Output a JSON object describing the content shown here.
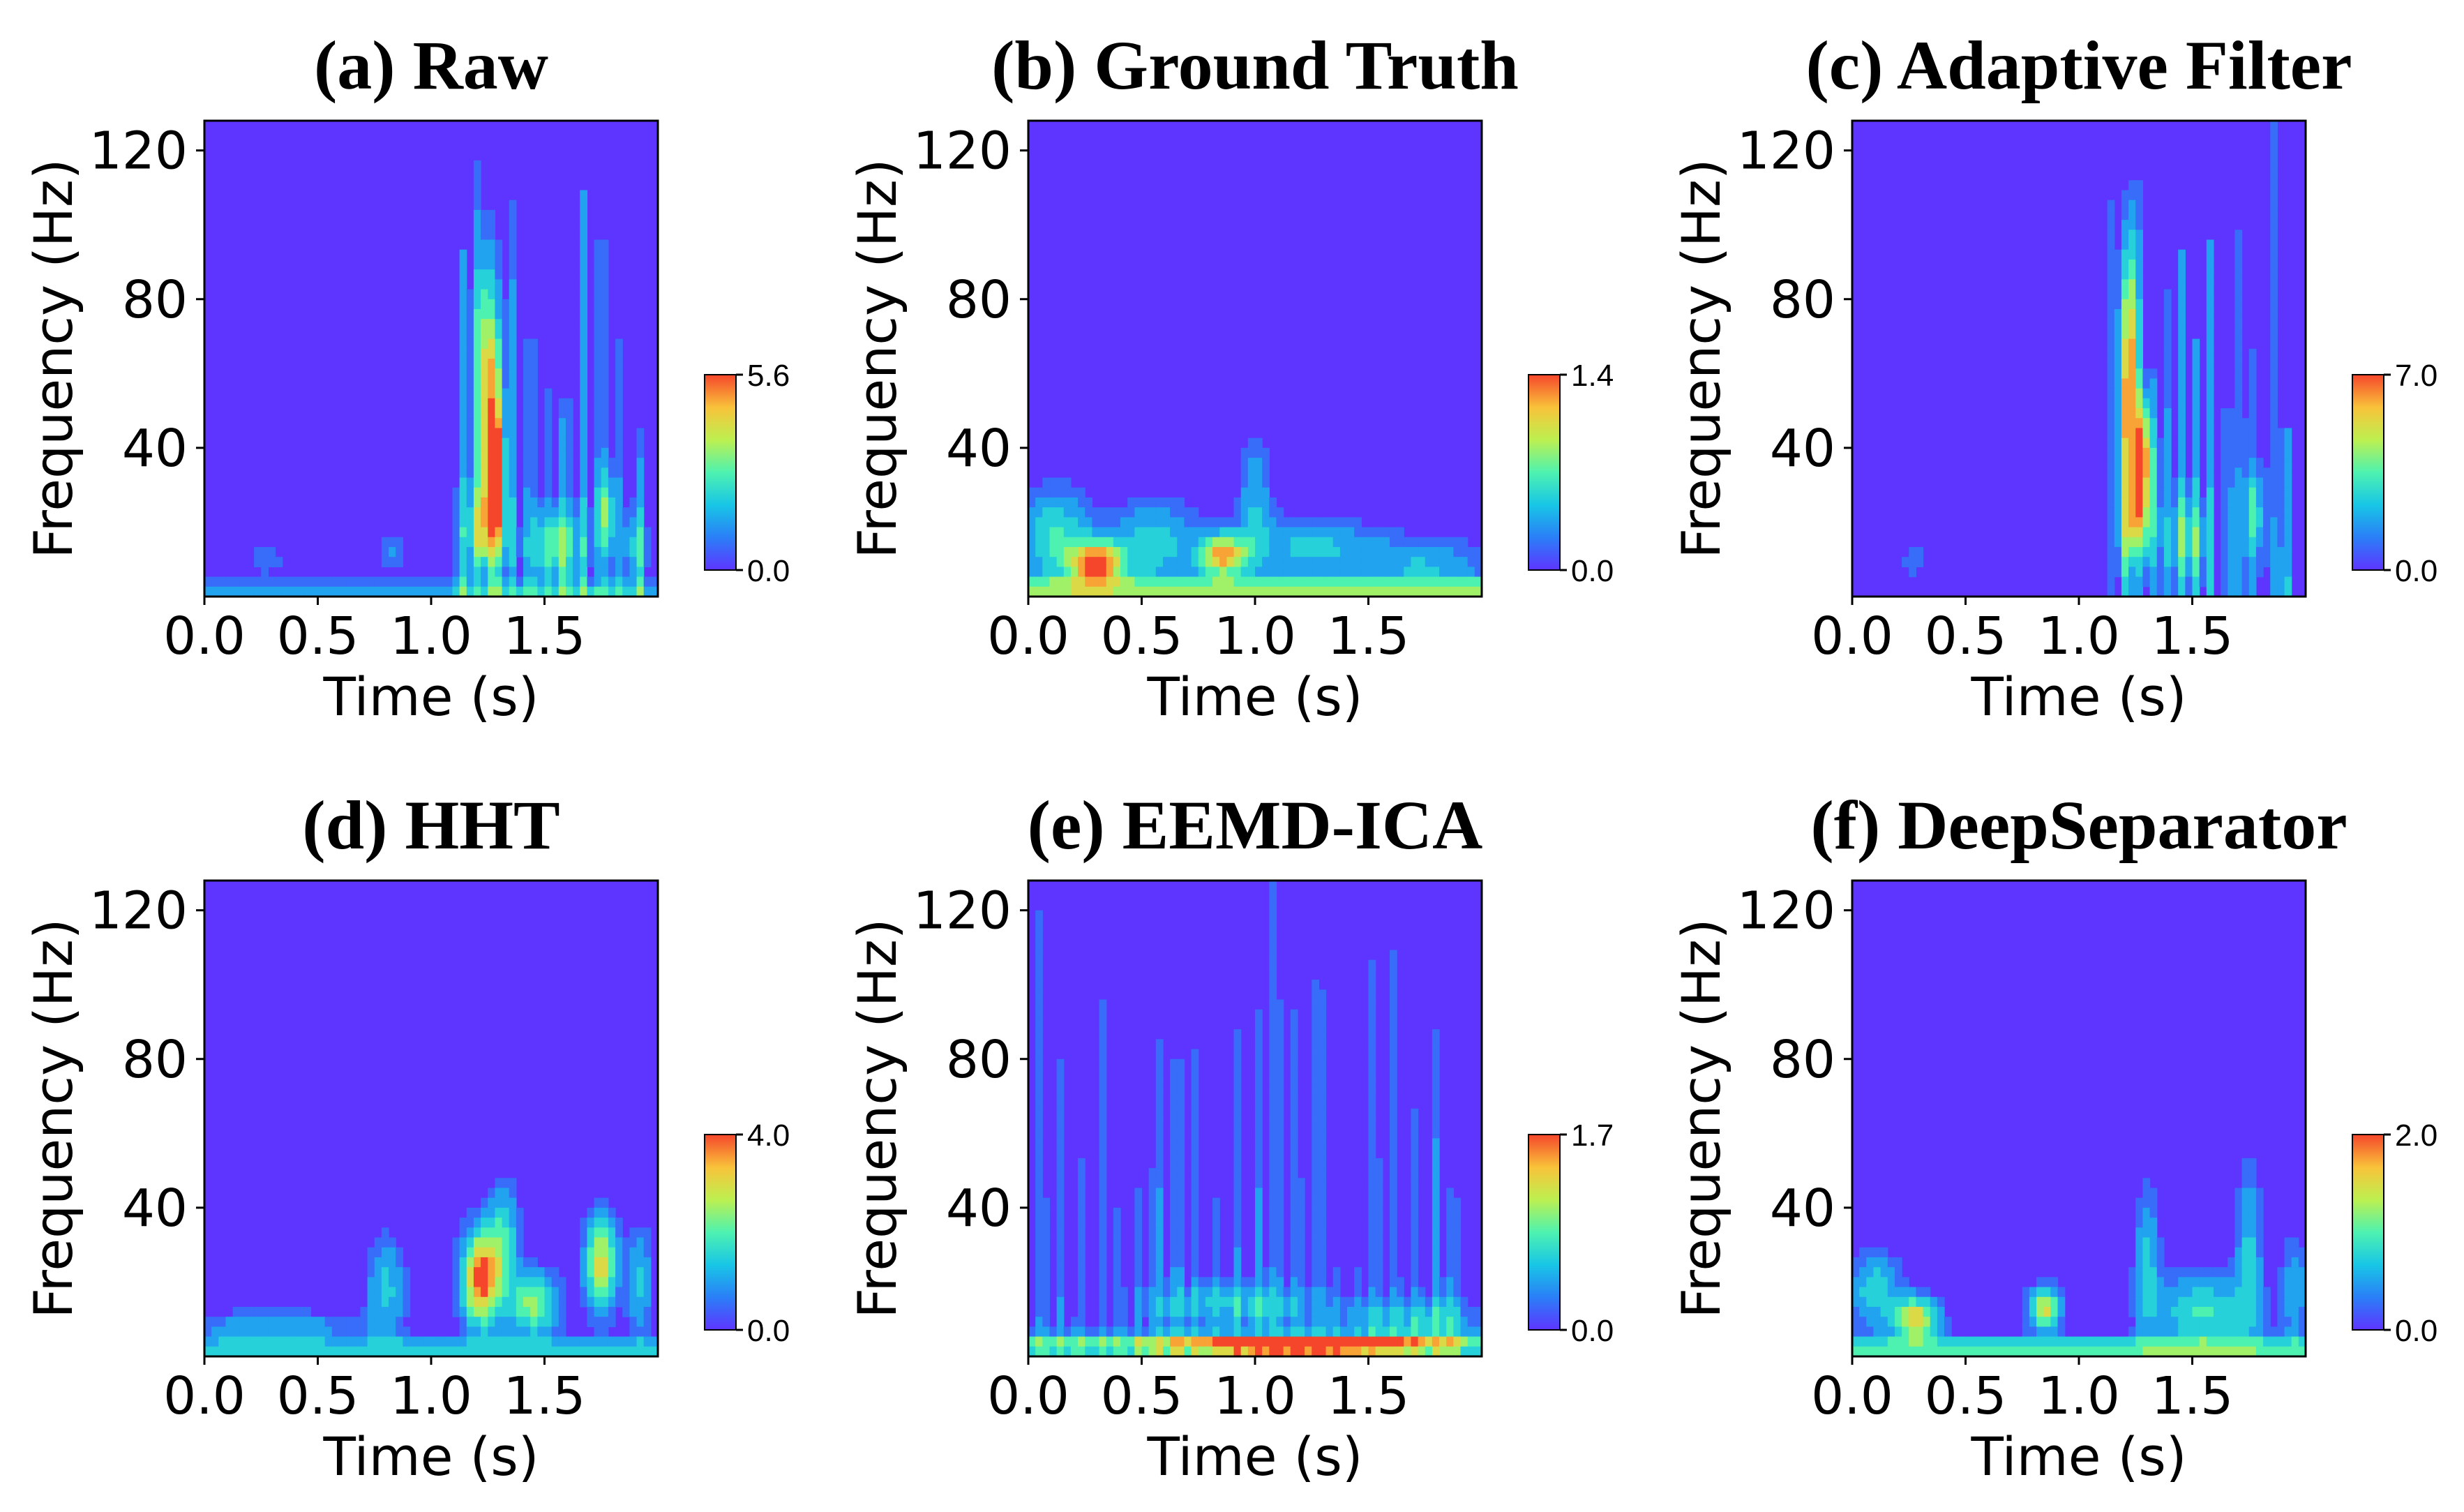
{
  "figure": {
    "rows": 2,
    "cols": 3
  },
  "colors": {
    "background": "#5e35ff",
    "colormap": [
      "#5e35ff",
      "#2a7ff7",
      "#18c6e6",
      "#4ef2b0",
      "#bdf050",
      "#f9c23a",
      "#f5462b"
    ]
  },
  "chart_data": [
    {
      "type": "heatmap",
      "title": "(a) Raw",
      "xlabel": "Time (s)",
      "ylabel": "Frequency (Hz)",
      "xlim": [
        0,
        2.0
      ],
      "ylim": [
        0,
        128
      ],
      "xticks": [
        0.0,
        0.5,
        1.0,
        1.5
      ],
      "xtick_labels": [
        "0.0",
        "0.5",
        "1.0",
        "1.5"
      ],
      "yticks": [
        40,
        80,
        120
      ],
      "ytick_labels": [
        "40",
        "80",
        "120"
      ],
      "colorbar": {
        "min": 0.0,
        "max": 5.6,
        "min_label": "0.0",
        "max_label": "5.6"
      },
      "features": [
        {
          "kind": "streaks",
          "x_from": 1.12,
          "x_to": 1.97,
          "count": 11,
          "y_top": 128,
          "level": 0.28
        },
        {
          "kind": "blob",
          "t": 1.25,
          "f": 60,
          "st": 0.04,
          "sf": 22,
          "level": 0.75
        },
        {
          "kind": "blob",
          "t": 1.28,
          "f": 34,
          "st": 0.03,
          "sf": 10,
          "level": 1.0
        },
        {
          "kind": "blob",
          "t": 1.24,
          "f": 18,
          "st": 0.06,
          "sf": 8,
          "level": 0.6
        },
        {
          "kind": "blob",
          "t": 1.55,
          "f": 14,
          "st": 0.08,
          "sf": 6,
          "level": 0.45
        },
        {
          "kind": "blob",
          "t": 1.77,
          "f": 22,
          "st": 0.03,
          "sf": 8,
          "level": 0.45
        },
        {
          "kind": "blob",
          "t": 1.9,
          "f": 14,
          "st": 0.04,
          "sf": 7,
          "level": 0.3
        },
        {
          "kind": "blob",
          "t": 0.27,
          "f": 10,
          "st": 0.06,
          "sf": 3,
          "level": 0.18
        },
        {
          "kind": "blob",
          "t": 0.83,
          "f": 12,
          "st": 0.04,
          "sf": 4,
          "level": 0.2
        },
        {
          "kind": "band",
          "f": 1,
          "level": 0.28
        }
      ]
    },
    {
      "type": "heatmap",
      "title": "(b) Ground Truth",
      "xlabel": "Time (s)",
      "ylabel": "Frequency (Hz)",
      "xlim": [
        0,
        2.0
      ],
      "ylim": [
        0,
        128
      ],
      "xticks": [
        0.0,
        0.5,
        1.0,
        1.5
      ],
      "xtick_labels": [
        "0.0",
        "0.5",
        "1.0",
        "1.5"
      ],
      "yticks": [
        40,
        80,
        120
      ],
      "ytick_labels": [
        "40",
        "80",
        "120"
      ],
      "colorbar": {
        "min": 0.0,
        "max": 1.4,
        "min_label": "0.0",
        "max_label": "1.4"
      },
      "features": [
        {
          "kind": "blob",
          "t": 0.3,
          "f": 9,
          "st": 0.08,
          "sf": 4,
          "level": 1.0
        },
        {
          "kind": "blob",
          "t": 0.86,
          "f": 11,
          "st": 0.07,
          "sf": 4,
          "level": 0.85
        },
        {
          "kind": "blob",
          "t": 0.12,
          "f": 16,
          "st": 0.1,
          "sf": 9,
          "level": 0.45
        },
        {
          "kind": "blob",
          "t": 0.55,
          "f": 14,
          "st": 0.15,
          "sf": 8,
          "level": 0.38
        },
        {
          "kind": "blob",
          "t": 1.25,
          "f": 13,
          "st": 0.2,
          "sf": 6,
          "level": 0.35
        },
        {
          "kind": "blob",
          "t": 1.75,
          "f": 9,
          "st": 0.18,
          "sf": 5,
          "level": 0.3
        },
        {
          "kind": "blob",
          "t": 1.0,
          "f": 25,
          "st": 0.05,
          "sf": 12,
          "level": 0.3
        },
        {
          "kind": "band",
          "f": 2,
          "level": 0.55
        }
      ]
    },
    {
      "type": "heatmap",
      "title": "(c) Adaptive Filter",
      "xlabel": "Time (s)",
      "ylabel": "Frequency (Hz)",
      "xlim": [
        0,
        2.0
      ],
      "ylim": [
        0,
        128
      ],
      "xticks": [
        0.0,
        0.5,
        1.0,
        1.5
      ],
      "xtick_labels": [
        "0.0",
        "0.5",
        "1.0",
        "1.5"
      ],
      "yticks": [
        40,
        80,
        120
      ],
      "ytick_labels": [
        "40",
        "80",
        "120"
      ],
      "colorbar": {
        "min": 0.0,
        "max": 7.0,
        "min_label": "0.0",
        "max_label": "7.0"
      },
      "features": [
        {
          "kind": "streaks",
          "x_from": 1.12,
          "x_to": 1.97,
          "count": 13,
          "y_top": 128,
          "level": 0.3
        },
        {
          "kind": "blob",
          "t": 1.22,
          "f": 62,
          "st": 0.03,
          "sf": 24,
          "level": 0.85
        },
        {
          "kind": "blob",
          "t": 1.28,
          "f": 38,
          "st": 0.03,
          "sf": 10,
          "level": 0.85
        },
        {
          "kind": "blob",
          "t": 1.26,
          "f": 20,
          "st": 0.05,
          "sf": 8,
          "level": 0.55
        },
        {
          "kind": "blob",
          "t": 1.48,
          "f": 16,
          "st": 0.06,
          "sf": 7,
          "level": 0.35
        },
        {
          "kind": "blob",
          "t": 1.77,
          "f": 22,
          "st": 0.03,
          "sf": 8,
          "level": 0.4
        },
        {
          "kind": "blob",
          "t": 0.28,
          "f": 10,
          "st": 0.04,
          "sf": 3,
          "level": 0.2
        }
      ]
    },
    {
      "type": "heatmap",
      "title": "(d) HHT",
      "xlabel": "Time (s)",
      "ylabel": "Frequency (Hz)",
      "xlim": [
        0,
        2.0
      ],
      "ylim": [
        0,
        128
      ],
      "xticks": [
        0.0,
        0.5,
        1.0,
        1.5
      ],
      "xtick_labels": [
        "0.0",
        "0.5",
        "1.0",
        "1.5"
      ],
      "yticks": [
        40,
        80,
        120
      ],
      "ytick_labels": [
        "40",
        "80",
        "120"
      ],
      "colorbar": {
        "min": 0.0,
        "max": 4.0,
        "min_label": "0.0",
        "max_label": "4.0"
      },
      "features": [
        {
          "kind": "blob",
          "t": 1.22,
          "f": 21,
          "st": 0.06,
          "sf": 9,
          "level": 1.0
        },
        {
          "kind": "blob",
          "t": 1.75,
          "f": 25,
          "st": 0.05,
          "sf": 9,
          "level": 0.75
        },
        {
          "kind": "blob",
          "t": 1.45,
          "f": 14,
          "st": 0.08,
          "sf": 6,
          "level": 0.6
        },
        {
          "kind": "blob",
          "t": 1.32,
          "f": 32,
          "st": 0.05,
          "sf": 10,
          "level": 0.4
        },
        {
          "kind": "blob",
          "t": 0.8,
          "f": 18,
          "st": 0.06,
          "sf": 10,
          "level": 0.35
        },
        {
          "kind": "blob",
          "t": 1.92,
          "f": 20,
          "st": 0.04,
          "sf": 10,
          "level": 0.35
        },
        {
          "kind": "blob",
          "t": 0.3,
          "f": 8,
          "st": 0.25,
          "sf": 3,
          "level": 0.3
        },
        {
          "kind": "band",
          "f": 2,
          "level": 0.35
        }
      ]
    },
    {
      "type": "heatmap",
      "title": "(e) EEMD-ICA",
      "xlabel": "Time (s)",
      "ylabel": "Frequency (Hz)",
      "xlim": [
        0,
        2.0
      ],
      "ylim": [
        0,
        128
      ],
      "xticks": [
        0.0,
        0.5,
        1.0,
        1.5
      ],
      "xtick_labels": [
        "0.0",
        "0.5",
        "1.0",
        "1.5"
      ],
      "yticks": [
        40,
        80,
        120
      ],
      "ytick_labels": [
        "40",
        "80",
        "120"
      ],
      "colorbar": {
        "min": 0.0,
        "max": 1.7,
        "min_label": "0.0",
        "max_label": "1.7"
      },
      "features": [
        {
          "kind": "streaks",
          "x_from": 0.05,
          "x_to": 1.95,
          "count": 22,
          "y_top": 128,
          "level": 0.22
        },
        {
          "kind": "blob",
          "t": 1.2,
          "f": 3,
          "st": 0.35,
          "sf": 1.5,
          "level": 1.0
        },
        {
          "kind": "blob",
          "t": 0.9,
          "f": 14,
          "st": 0.25,
          "sf": 4,
          "level": 0.3
        },
        {
          "kind": "blob",
          "t": 1.7,
          "f": 10,
          "st": 0.25,
          "sf": 4,
          "level": 0.28
        },
        {
          "kind": "band",
          "f": 3,
          "level": 0.45
        }
      ]
    },
    {
      "type": "heatmap",
      "title": "(f) DeepSeparator",
      "xlabel": "Time (s)",
      "ylabel": "Frequency (Hz)",
      "xlim": [
        0,
        2.0
      ],
      "ylim": [
        0,
        128
      ],
      "xticks": [
        0.0,
        0.5,
        1.0,
        1.5
      ],
      "xtick_labels": [
        "0.0",
        "0.5",
        "1.0",
        "1.5"
      ],
      "yticks": [
        40,
        80,
        120
      ],
      "ytick_labels": [
        "40",
        "80",
        "120"
      ],
      "colorbar": {
        "min": 0.0,
        "max": 2.0,
        "min_label": "0.0",
        "max_label": "2.0"
      },
      "features": [
        {
          "kind": "blob",
          "t": 0.28,
          "f": 10,
          "st": 0.07,
          "sf": 4,
          "level": 0.8
        },
        {
          "kind": "blob",
          "t": 0.85,
          "f": 13,
          "st": 0.05,
          "sf": 4,
          "level": 0.75
        },
        {
          "kind": "blob",
          "t": 0.1,
          "f": 18,
          "st": 0.08,
          "sf": 7,
          "level": 0.4
        },
        {
          "kind": "blob",
          "t": 1.55,
          "f": 12,
          "st": 0.15,
          "sf": 7,
          "level": 0.45
        },
        {
          "kind": "blob",
          "t": 1.3,
          "f": 25,
          "st": 0.04,
          "sf": 14,
          "level": 0.35
        },
        {
          "kind": "blob",
          "t": 1.75,
          "f": 28,
          "st": 0.04,
          "sf": 16,
          "level": 0.35
        },
        {
          "kind": "blob",
          "t": 1.95,
          "f": 18,
          "st": 0.04,
          "sf": 10,
          "level": 0.3
        },
        {
          "kind": "band",
          "f": 2,
          "level": 0.5
        }
      ]
    }
  ]
}
